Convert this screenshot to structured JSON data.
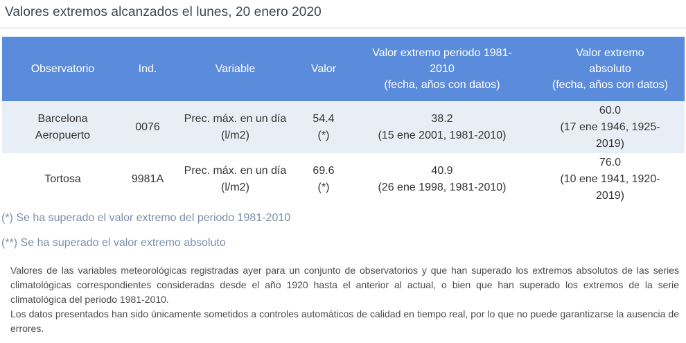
{
  "page": {
    "title": "Valores extremos alcanzados el lunes, 20 enero 2020"
  },
  "table": {
    "headers": {
      "observatorio": "Observatorio",
      "ind": "Ind.",
      "variable": "Variable",
      "valor": "Valor",
      "periodo": "Valor extremo periodo 1981-\n2010\n(fecha, años con datos)",
      "absoluto": "Valor extremo\nabsoluto\n(fecha, años con datos)"
    },
    "rows": [
      {
        "observatorio": "Barcelona\nAeropuerto",
        "ind": "0076",
        "variable": "Prec. máx. en un día\n(l/m2)",
        "valor": "54.4\n(*)",
        "periodo": "38.2\n(15 ene 2001, 1981-2010)",
        "absoluto": "60.0\n(17 ene 1946, 1925-\n2019)"
      },
      {
        "observatorio": "Tortosa",
        "ind": "9981A",
        "variable": "Prec. máx. en un día\n(l/m2)",
        "valor": "69.6\n(*)",
        "periodo": "40.9\n(26 ene 1998, 1981-2010)",
        "absoluto": "76.0\n(10 ene 1941, 1920-\n2019)"
      }
    ]
  },
  "notes": {
    "periodo": "(*) Se ha superado el valor extremo del periodo 1981-2010",
    "absoluto": "(**) Se ha superado el valor extremo absoluto"
  },
  "description": {
    "paragraph1": "Valores de las variables meteorológicas registradas ayer para un conjunto de observatorios y que han superado los extremos absolutos de las series climatológicas correspondientes consideradas desde el año 1920 hasta el anterior al actual, o bien que han superado los extremos de la serie climatológica del periodo 1981-2010.",
    "paragraph2": "Los datos presentados han sido únicamente sometidos a controles automáticos de calidad en tiempo real, por lo que no puede garantizarse la ausencia de errores."
  },
  "colors": {
    "header_bg": "#5b8bdb",
    "row_alt_bg": "#e7eef5",
    "note_text": "#7a8fa8"
  }
}
